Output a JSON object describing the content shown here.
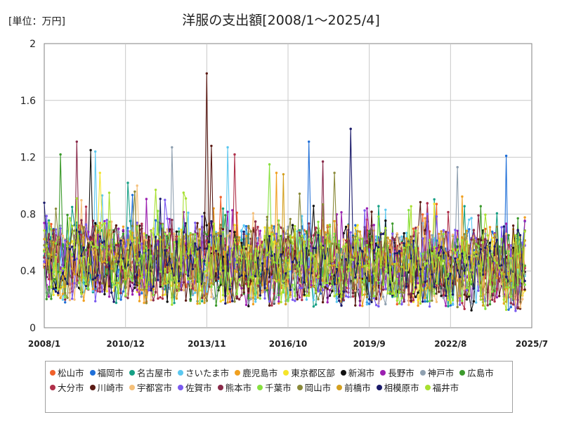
{
  "chart_data": {
    "type": "line",
    "title": "洋服の支出額[2008/1～2025/4]",
    "unit_label": "[単位：万円]",
    "x_range": [
      "2008/1",
      "2025/7"
    ],
    "x_ticks": [
      "2008/1",
      "2010/12",
      "2013/11",
      "2016/10",
      "2019/9",
      "2022/8",
      "2025/7"
    ],
    "y_ticks": [
      "0",
      "0.4",
      "0.8",
      "1.2",
      "1.6",
      "2"
    ],
    "ylim": [
      0,
      2
    ],
    "grid": true,
    "legend_position": "bottom",
    "series": [
      {
        "name": "松山市",
        "color": "#f0602a",
        "peaks": [
          [
            "2014/5",
            0.92
          ]
        ]
      },
      {
        "name": "福岡市",
        "color": "#1f6fd8",
        "peaks": [
          [
            "2017/7",
            1.31
          ],
          [
            "2024/8",
            1.21
          ]
        ]
      },
      {
        "name": "名古屋市",
        "color": "#16a085",
        "peaks": [
          [
            "2011/1",
            1.02
          ]
        ]
      },
      {
        "name": "さいたま市",
        "color": "#5bc8f0",
        "peaks": [
          [
            "2009/11",
            1.24
          ],
          [
            "2014/8",
            1.27
          ]
        ]
      },
      {
        "name": "鹿児島市",
        "color": "#f0a020",
        "peaks": [
          [
            "2016/5",
            1.09
          ]
        ]
      },
      {
        "name": "東京都区部",
        "color": "#f5e52a",
        "peaks": [
          [
            "2010/1",
            1.09
          ]
        ]
      },
      {
        "name": "新潟市",
        "color": "#111111",
        "peaks": [
          [
            "2009/9",
            1.25
          ]
        ]
      },
      {
        "name": "長野市",
        "color": "#9b1fb0",
        "peaks": [
          [
            "2019/8",
            0.84
          ]
        ]
      },
      {
        "name": "神戸市",
        "color": "#8fa0b0",
        "peaks": [
          [
            "2012/8",
            1.27
          ],
          [
            "2022/11",
            1.13
          ]
        ]
      },
      {
        "name": "広島市",
        "color": "#3c9a2c",
        "peaks": [
          [
            "2008/8",
            1.22
          ]
        ]
      },
      {
        "name": "大分市",
        "color": "#b0304a",
        "peaks": [
          [
            "2014/11",
            1.22
          ]
        ]
      },
      {
        "name": "川崎市",
        "color": "#5a1a14",
        "peaks": [
          [
            "2013/11",
            1.79
          ],
          [
            "2014/1",
            1.28
          ]
        ]
      },
      {
        "name": "宇都宮市",
        "color": "#f5c07a",
        "peaks": [
          [
            "2011/5",
            1.0
          ]
        ]
      },
      {
        "name": "佐賀市",
        "color": "#7a5af0",
        "peaks": [
          [
            "2012/5",
            0.9
          ]
        ]
      },
      {
        "name": "熊本市",
        "color": "#8a2a4a",
        "peaks": [
          [
            "2009/3",
            1.31
          ],
          [
            "2018/1",
            1.17
          ]
        ]
      },
      {
        "name": "千葉市",
        "color": "#88e040",
        "peaks": [
          [
            "2016/2",
            1.15
          ]
        ]
      },
      {
        "name": "岡山市",
        "color": "#8a8a3a",
        "peaks": [
          [
            "2018/6",
            1.09
          ]
        ]
      },
      {
        "name": "前橋市",
        "color": "#d4a020",
        "peaks": [
          [
            "2016/8",
            1.08
          ]
        ]
      },
      {
        "name": "相模原市",
        "color": "#1a1a6a",
        "peaks": [
          [
            "2019/1",
            1.4
          ]
        ]
      },
      {
        "name": "福井市",
        "color": "#a8e030",
        "peaks": [
          [
            "2010/5",
            0.95
          ]
        ]
      }
    ]
  }
}
